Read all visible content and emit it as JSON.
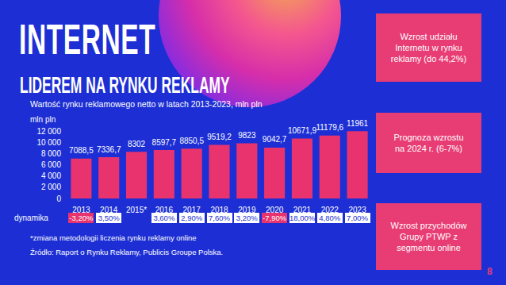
{
  "slide": {
    "heading": "INTERNET",
    "subheading": "LIDEREM NA RYNKU REKLAMY",
    "page_number": 8,
    "highlights": [
      "Wzrost udziału Internetu w rynku reklamy (do 44,2%)",
      "Prognoza wzrostu na 2024 r. (6-7%)",
      "Wzrost przychodów Grupy PTWP z segmentu online"
    ]
  },
  "chart_data": {
    "type": "bar",
    "title": "Wartość rynku reklamowego netto w latach 2013-2023, mln pln",
    "y_label": "mln pln",
    "categories": [
      "2013",
      "2014",
      "2015*",
      "2016",
      "2017",
      "2018",
      "2019",
      "2020",
      "2021",
      "2022",
      "2023"
    ],
    "values": [
      7088.5,
      7336.7,
      8302,
      8597.7,
      8850.5,
      9519.2,
      9823,
      9042.7,
      10671.9,
      11179.6,
      11961
    ],
    "value_labels": [
      "7088,5",
      "7336,7",
      "8302",
      "8597,7",
      "8850,5",
      "9519,2",
      "9823",
      "9042,7",
      "10671,9",
      "11179,6",
      "11961"
    ],
    "color": "#e8336e",
    "ylim": [
      0,
      12000
    ],
    "yticks": [
      0,
      {
        "value": 2000,
        "label": "2 000"
      },
      {
        "value": 4000,
        "label": "4 000"
      },
      {
        "value": 6000,
        "label": "6 000"
      },
      {
        "value": 8000,
        "label": "8 000"
      },
      {
        "value": 10000,
        "label": "10 000"
      },
      {
        "value": 12000,
        "label": "12 000"
      }
    ],
    "grid": false,
    "data_labels": true,
    "dynamics": {
      "label": "dynamika",
      "values": [
        -3.2,
        3.5,
        null,
        3.6,
        2.9,
        7.6,
        3.2,
        -7.9,
        18.0,
        4.8,
        7.0
      ],
      "value_labels": [
        "-3,20%",
        "3,50%",
        null,
        "3,60%",
        "2,90%",
        "7,60%",
        "3,20%",
        "-7,90%",
        "18,00%",
        "4,80%",
        "7,00%"
      ]
    },
    "footnote": "*zmiana metodologii liczenia rynku reklamy online",
    "source": "Źródło: Raport o Rynku Reklamy, Publicis Groupe Polska."
  }
}
